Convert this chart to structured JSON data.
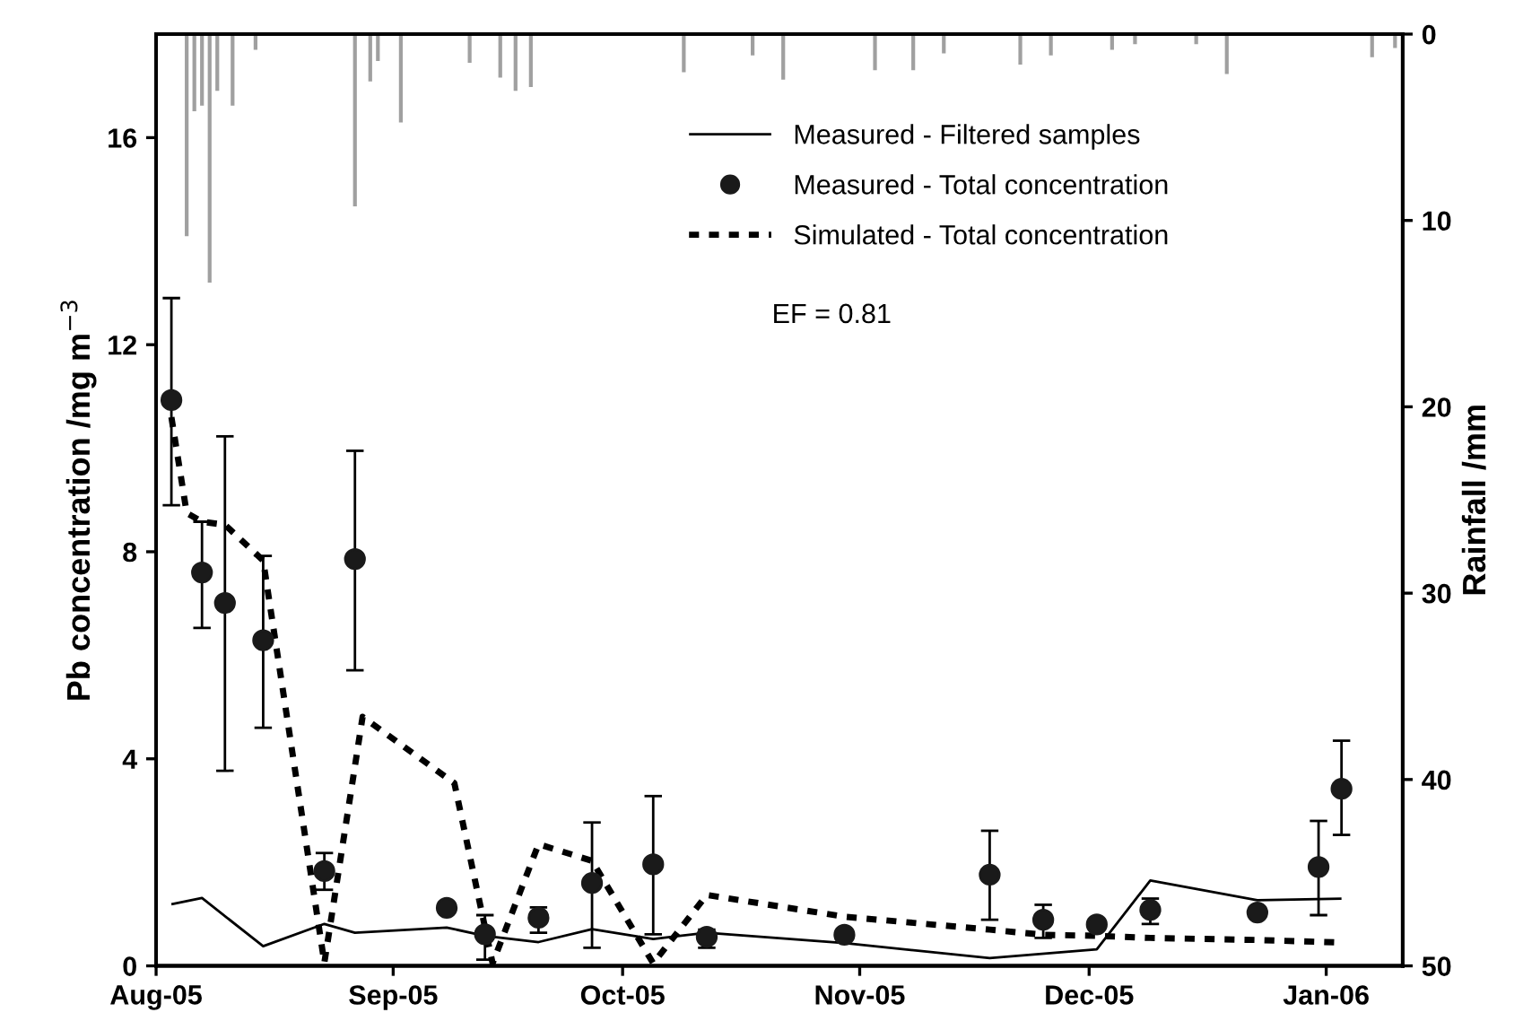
{
  "chart_data": {
    "type": "line",
    "xlabel": null,
    "ylabel": "Pb concentration /mg m$^{−3}$",
    "y2label": "Rainfall /mm",
    "annotations": [
      "EF = 0.81"
    ],
    "xlim": [
      "2005-08-01",
      "2006-01-11"
    ],
    "xticks": [
      {
        "value": "2005-08-01",
        "label": "Aug-05"
      },
      {
        "value": "2005-09-01",
        "label": "Sep-05"
      },
      {
        "value": "2005-10-01",
        "label": "Oct-05"
      },
      {
        "value": "2005-11-01",
        "label": "Nov-05"
      },
      {
        "value": "2005-12-01",
        "label": "Dec-05"
      },
      {
        "value": "2006-01-01",
        "label": "Jan-06"
      }
    ],
    "ylim": [
      0,
      18
    ],
    "yticks": [
      0,
      4,
      8,
      12,
      16
    ],
    "y2lim": [
      50,
      0
    ],
    "y2ticks": [
      0,
      10,
      20,
      30,
      40,
      50
    ],
    "grid": false,
    "legend": "top",
    "series": [
      {
        "name": "Measured - Filtered samples",
        "color": "#000000",
        "line_style": "solid",
        "marker": "none",
        "x": [
          "2005-08-03",
          "2005-08-07",
          "2005-08-15",
          "2005-08-23",
          "2005-08-27",
          "2005-09-08",
          "2005-09-13",
          "2005-09-20",
          "2005-09-27",
          "2005-10-05",
          "2005-10-12",
          "2005-10-30",
          "2005-11-18",
          "2005-12-02",
          "2005-12-09",
          "2005-12-23",
          "2006-01-03"
        ],
        "values": [
          1.19,
          1.31,
          0.38,
          0.81,
          0.64,
          0.74,
          0.58,
          0.46,
          0.71,
          0.52,
          0.64,
          0.44,
          0.15,
          0.32,
          1.65,
          1.27,
          1.3
        ]
      },
      {
        "name": "Measured - Total concentration",
        "type": "scatter",
        "color": "#1a1a1a",
        "marker": "circle",
        "x": [
          "2005-08-03",
          "2005-08-07",
          "2005-08-10",
          "2005-08-15",
          "2005-08-23",
          "2005-08-27",
          "2005-09-08",
          "2005-09-13",
          "2005-09-20",
          "2005-09-27",
          "2005-10-05",
          "2005-10-12",
          "2005-10-30",
          "2005-11-18",
          "2005-11-25",
          "2005-12-02",
          "2005-12-09",
          "2005-12-23",
          "2005-12-31",
          "2006-01-03"
        ],
        "values": [
          10.93,
          7.6,
          7.01,
          6.29,
          1.83,
          7.86,
          1.12,
          0.61,
          0.93,
          1.6,
          1.96,
          0.56,
          0.6,
          1.76,
          0.89,
          0.8,
          1.08,
          1.03,
          1.91,
          3.42
        ],
        "errors": [
          [
            8.9,
            12.9
          ],
          [
            6.53,
            8.58
          ],
          [
            3.77,
            10.23
          ],
          [
            4.6,
            7.92
          ],
          [
            1.47,
            2.18
          ],
          [
            5.71,
            9.95
          ],
          [
            1.02,
            1.22
          ],
          [
            0.12,
            0.98
          ],
          [
            0.64,
            1.13
          ],
          [
            0.35,
            2.77
          ],
          [
            0.61,
            3.28
          ],
          [
            0.35,
            0.7
          ],
          null,
          [
            0.89,
            2.61
          ],
          [
            0.54,
            1.18
          ],
          [
            0.72,
            0.88
          ],
          [
            0.81,
            1.3
          ],
          [
            0.95,
            1.1
          ],
          [
            0.98,
            2.8
          ],
          [
            2.53,
            4.35
          ]
        ]
      },
      {
        "name": "Simulated - Total concentration",
        "color": "#000000",
        "line_style": "dashed",
        "marker": "none",
        "x": [
          "2005-08-03",
          "2005-08-05",
          "2005-08-07",
          "2005-08-10",
          "2005-08-15",
          "2005-08-23",
          "2005-08-28",
          "2005-09-09",
          "2005-09-14",
          "2005-09-20",
          "2005-09-27",
          "2005-10-05",
          "2005-10-12",
          "2005-10-30",
          "2005-11-18",
          "2005-11-25",
          "2005-12-02",
          "2005-12-09",
          "2005-12-23",
          "2006-01-03"
        ],
        "values": [
          10.6,
          8.75,
          8.58,
          8.52,
          7.83,
          0.06,
          4.81,
          3.53,
          0.05,
          2.35,
          2.03,
          0.05,
          1.37,
          0.95,
          0.7,
          0.6,
          0.58,
          0.54,
          0.5,
          0.45
        ]
      },
      {
        "type": "bar",
        "axis": "y2",
        "color": "#a0a0a0",
        "x": [
          "2005-08-05",
          "2005-08-06",
          "2005-08-07",
          "2005-08-08",
          "2005-08-09",
          "2005-08-11",
          "2005-08-14",
          "2005-08-27",
          "2005-08-29",
          "2005-08-30",
          "2005-09-02",
          "2005-09-11",
          "2005-09-15",
          "2005-09-17",
          "2005-09-19",
          "2005-10-09",
          "2005-10-18",
          "2005-10-22",
          "2005-11-03",
          "2005-11-08",
          "2005-11-12",
          "2005-11-22",
          "2005-11-26",
          "2005-12-04",
          "2005-12-07",
          "2005-12-15",
          "2005-12-19",
          "2006-01-07",
          "2006-01-10"
        ],
        "values": [
          10.8,
          4.1,
          3.8,
          13.3,
          3.0,
          3.8,
          0.8,
          9.2,
          2.5,
          1.4,
          4.7,
          1.5,
          2.3,
          3.0,
          2.8,
          2.0,
          1.1,
          2.4,
          1.9,
          1.9,
          1.0,
          1.6,
          1.1,
          0.8,
          0.5,
          0.5,
          2.1,
          1.2,
          0.7
        ]
      }
    ]
  }
}
